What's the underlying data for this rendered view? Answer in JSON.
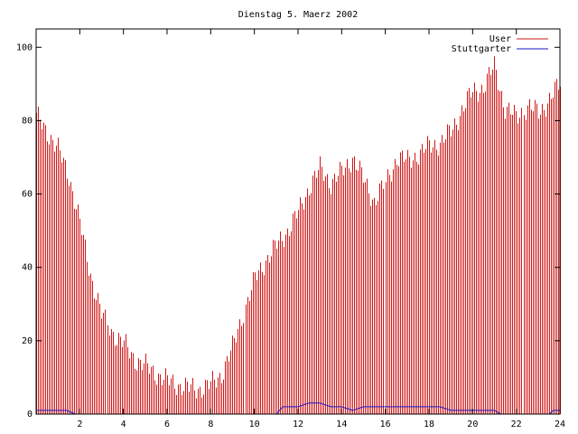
{
  "chart_data": {
    "type": "bar",
    "title": "Dienstag 5. Maerz 2002",
    "xlabel": "",
    "ylabel": "",
    "xlim": [
      0,
      24
    ],
    "ylim": [
      0,
      105
    ],
    "x_ticks": [
      2,
      4,
      6,
      8,
      10,
      12,
      14,
      16,
      18,
      20,
      22,
      24
    ],
    "y_ticks": [
      0,
      20,
      40,
      60,
      80,
      100
    ],
    "grid": false,
    "legend": "top-right",
    "bar_interval_hours": 0.0833,
    "series": [
      {
        "name": "User",
        "color": "#d01818",
        "style": "impulses",
        "x": [
          0,
          0.5,
          1,
          1.5,
          2,
          2.5,
          3,
          3.5,
          4,
          4.5,
          5,
          5.5,
          6,
          6.5,
          7,
          7.5,
          8,
          8.5,
          9,
          9.5,
          10,
          10.5,
          11,
          11.5,
          12,
          12.5,
          13,
          13.5,
          14,
          14.5,
          15,
          15.5,
          16,
          16.5,
          17,
          17.5,
          18,
          18.5,
          19,
          19.5,
          20,
          20.5,
          21,
          21.5,
          22,
          22.5,
          23,
          23.5,
          24
        ],
        "values": [
          81,
          77,
          72,
          65,
          52,
          38,
          27,
          22,
          19,
          15,
          13,
          11,
          9,
          8,
          7,
          7,
          8,
          11,
          18,
          28,
          37,
          42,
          46,
          50,
          55,
          62,
          67,
          63,
          66,
          70,
          64,
          58,
          63,
          70,
          69,
          71,
          73,
          74,
          77,
          83,
          88,
          89,
          95,
          83,
          81,
          84,
          82,
          86,
          90
        ]
      },
      {
        "name": "Stuttgarter",
        "color": "#1818c8",
        "style": "lines",
        "x": [
          0,
          1.4,
          1.8,
          11,
          11.3,
          12,
          12.5,
          13,
          13.5,
          14,
          14.5,
          15,
          15.5,
          16,
          16.5,
          17,
          17.5,
          18,
          18.5,
          19,
          19.5,
          20,
          20.5,
          21,
          21.3,
          23.5,
          23.7,
          24
        ],
        "values": [
          1,
          1,
          0,
          0,
          2,
          2,
          3,
          3,
          2,
          2,
          1,
          2,
          2,
          2,
          2,
          2,
          2,
          2,
          2,
          1,
          1,
          1,
          1,
          1,
          0,
          0,
          1,
          1
        ]
      }
    ]
  }
}
